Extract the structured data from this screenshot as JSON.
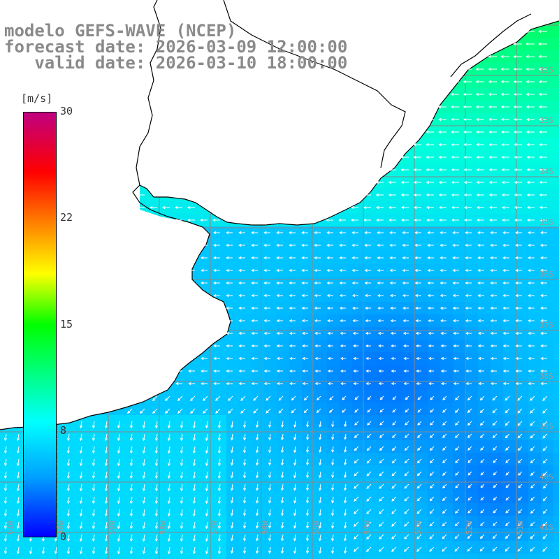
{
  "title": {
    "line1": "modelo GEFS-WAVE (NCEP)",
    "line2": "forecast date: 2026-03-09 12:00:00",
    "line3": "   valid date: 2026-03-10 18:00:00"
  },
  "colorbar": {
    "unit": "[m/s]",
    "ticks": [
      "30",
      "22",
      "15",
      "8",
      "0"
    ],
    "min": 0,
    "max": 30
  },
  "grid": {
    "lon_labels": [
      "61W",
      "60W",
      "59W",
      "58W",
      "57W",
      "56W",
      "55W",
      "54W",
      "53W",
      "52W",
      "51W"
    ],
    "lat_labels": [
      "32S",
      "33S",
      "34S",
      "35S",
      "36S",
      "37S",
      "38S",
      "39S",
      "40S",
      "41S"
    ]
  },
  "field": {
    "variable": "wind speed",
    "arrow_color": "#ffffff",
    "land_color": "#ffffff",
    "coast_color": "#000000"
  }
}
